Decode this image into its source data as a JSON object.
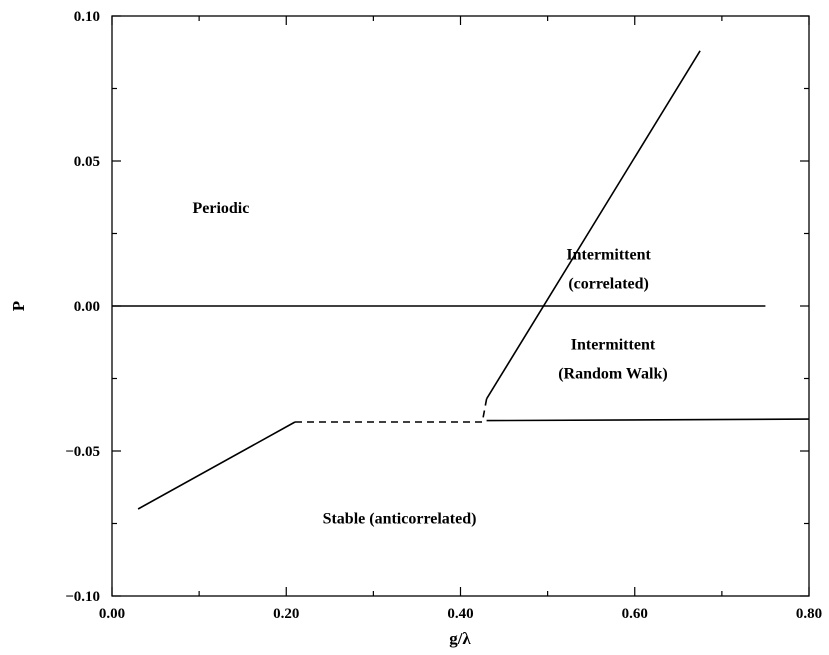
{
  "chart_data": {
    "type": "line",
    "title": "",
    "xlabel": "g/λ",
    "ylabel": "P",
    "xlim": [
      0.0,
      0.8
    ],
    "ylim": [
      -0.1,
      0.1
    ],
    "grid": false,
    "x_ticks": [
      0.0,
      0.2,
      0.4,
      0.6,
      0.8
    ],
    "x_tick_labels": [
      "0.00",
      "0.20",
      "0.40",
      "0.60",
      "0.80"
    ],
    "y_ticks": [
      -0.1,
      -0.05,
      0.0,
      0.05,
      0.1
    ],
    "y_tick_labels": [
      "-0.10",
      "-0.05",
      "0.00",
      "0.05",
      "0.10"
    ],
    "series": [
      {
        "style": "solid",
        "x": [
          0.03,
          0.21
        ],
        "y": [
          -0.07,
          -0.04
        ]
      },
      {
        "style": "dashed",
        "x": [
          0.21,
          0.425,
          0.43
        ],
        "y": [
          -0.04,
          -0.04,
          -0.032
        ]
      },
      {
        "style": "solid",
        "x": [
          0.43,
          0.675
        ],
        "y": [
          -0.032,
          0.088
        ]
      },
      {
        "style": "solid",
        "x": [
          0.0,
          0.75
        ],
        "y": [
          0.0,
          0.0
        ]
      },
      {
        "style": "solid",
        "x": [
          0.43,
          0.8
        ],
        "y": [
          -0.0395,
          -0.039
        ]
      }
    ],
    "annotations": [
      {
        "text": "Periodic",
        "x": 0.125,
        "y": 0.032
      },
      {
        "text": "Intermittent",
        "x": 0.57,
        "y": 0.016
      },
      {
        "text": "(correlated)",
        "x": 0.57,
        "y": 0.006
      },
      {
        "text": "Intermittent",
        "x": 0.575,
        "y": -0.015
      },
      {
        "text": "(Random Walk)",
        "x": 0.575,
        "y": -0.025
      },
      {
        "text": "Stable (anticorrelated)",
        "x": 0.33,
        "y": -0.075
      }
    ]
  }
}
